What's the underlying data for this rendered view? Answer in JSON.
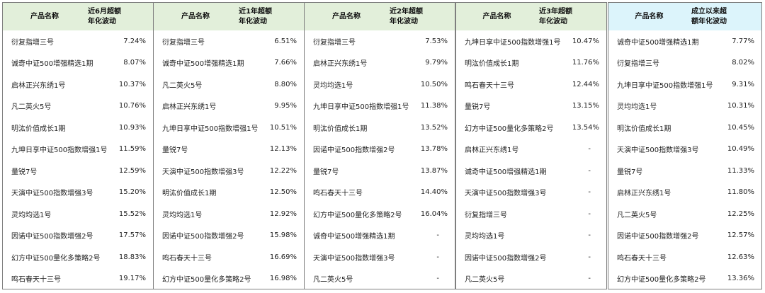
{
  "colors": {
    "header_bg": "#e2efda",
    "header_bg_last": "#dcf4fb",
    "border": "#7e7e7e"
  },
  "panels": [
    {
      "name_header": "产品名称",
      "value_header_line1": "近6月超额",
      "value_header_line2": "年化波动",
      "rows": [
        {
          "name": "衍复指增三号",
          "value": "7.24%"
        },
        {
          "name": "诚奇中证500增强精选1期",
          "value": "8.07%"
        },
        {
          "name": "启林正兴东绣1号",
          "value": "10.37%"
        },
        {
          "name": "凡二英火5号",
          "value": "10.76%"
        },
        {
          "name": "明汯价值成长1期",
          "value": "10.93%"
        },
        {
          "name": "九坤日享中证500指数增强1号",
          "value": "11.59%"
        },
        {
          "name": "量锐7号",
          "value": "12.59%"
        },
        {
          "name": "天演中证500指数增强3号",
          "value": "15.20%"
        },
        {
          "name": "灵均均选1号",
          "value": "15.52%"
        },
        {
          "name": "因诺中证500指数增强2号",
          "value": "17.57%"
        },
        {
          "name": "幻方中证500量化多策略2号",
          "value": "18.83%"
        },
        {
          "name": "鸣石春天十三号",
          "value": "19.17%"
        }
      ]
    },
    {
      "name_header": "产品名称",
      "value_header_line1": "近1年超额",
      "value_header_line2": "年化波动",
      "rows": [
        {
          "name": "衍复指增三号",
          "value": "6.51%"
        },
        {
          "name": "诚奇中证500增强精选1期",
          "value": "7.66%"
        },
        {
          "name": "凡二英火5号",
          "value": "8.80%"
        },
        {
          "name": "启林正兴东绣1号",
          "value": "9.95%"
        },
        {
          "name": "九坤日享中证500指数增强1号",
          "value": "10.51%"
        },
        {
          "name": "量锐7号",
          "value": "12.13%"
        },
        {
          "name": "天演中证500指数增强3号",
          "value": "12.22%"
        },
        {
          "name": "明汯价值成长1期",
          "value": "12.50%"
        },
        {
          "name": "灵均均选1号",
          "value": "12.92%"
        },
        {
          "name": "因诺中证500指数增强2号",
          "value": "15.98%"
        },
        {
          "name": "鸣石春天十三号",
          "value": "16.69%"
        },
        {
          "name": "幻方中证500量化多策略2号",
          "value": "16.98%"
        }
      ]
    },
    {
      "name_header": "产品名称",
      "value_header_line1": "近2年超额",
      "value_header_line2": "年化波动",
      "rows": [
        {
          "name": "衍复指增三号",
          "value": "7.53%"
        },
        {
          "name": "启林正兴东绣1号",
          "value": "9.79%"
        },
        {
          "name": "灵均均选1号",
          "value": "10.50%"
        },
        {
          "name": "九坤日享中证500指数增强1号",
          "value": "11.38%"
        },
        {
          "name": "明汯价值成长1期",
          "value": "13.52%"
        },
        {
          "name": "因诺中证500指数增强2号",
          "value": "13.78%"
        },
        {
          "name": "量锐7号",
          "value": "13.87%"
        },
        {
          "name": "鸣石春天十三号",
          "value": "14.40%"
        },
        {
          "name": "幻方中证500量化多策略2号",
          "value": "16.04%"
        },
        {
          "name": "诚奇中证500增强精选1期",
          "value": "-"
        },
        {
          "name": "天演中证500指数增强3号",
          "value": "-"
        },
        {
          "name": "凡二英火5号",
          "value": "-"
        }
      ]
    },
    {
      "name_header": "产品名称",
      "value_header_line1": "近3年超额",
      "value_header_line2": "年化波动",
      "rows": [
        {
          "name": "九坤日享中证500指数增强1号",
          "value": "10.47%"
        },
        {
          "name": "明汯价值成长1期",
          "value": "11.76%"
        },
        {
          "name": "鸣石春天十三号",
          "value": "12.44%"
        },
        {
          "name": "量锐7号",
          "value": "13.15%"
        },
        {
          "name": "幻方中证500量化多策略2号",
          "value": "13.54%"
        },
        {
          "name": "启林正兴东绣1号",
          "value": "-"
        },
        {
          "name": "诚奇中证500增强精选1期",
          "value": "-"
        },
        {
          "name": "天演中证500指数增强3号",
          "value": "-"
        },
        {
          "name": "衍复指增三号",
          "value": "-"
        },
        {
          "name": "灵均均选1号",
          "value": "-"
        },
        {
          "name": "因诺中证500指数增强2号",
          "value": "-"
        },
        {
          "name": "凡二英火5号",
          "value": "-"
        }
      ]
    },
    {
      "name_header": "产品名称",
      "value_header_line1": "成立以来超",
      "value_header_line2": "额年化波动",
      "rows": [
        {
          "name": "诚奇中证500增强精选1期",
          "value": "7.77%"
        },
        {
          "name": "衍复指增三号",
          "value": "8.02%"
        },
        {
          "name": "九坤日享中证500指数增强1号",
          "value": "9.31%"
        },
        {
          "name": "灵均均选1号",
          "value": "10.31%"
        },
        {
          "name": "明汯价值成长1期",
          "value": "10.45%"
        },
        {
          "name": "天演中证500指数增强3号",
          "value": "10.49%"
        },
        {
          "name": "量锐7号",
          "value": "11.33%"
        },
        {
          "name": "启林正兴东绣1号",
          "value": "11.80%"
        },
        {
          "name": "凡二英火5号",
          "value": "12.25%"
        },
        {
          "name": "因诺中证500指数增强2号",
          "value": "12.57%"
        },
        {
          "name": "鸣石春天十三号",
          "value": "12.63%"
        },
        {
          "name": "幻方中证500量化多策略2号",
          "value": "13.36%"
        }
      ]
    }
  ]
}
